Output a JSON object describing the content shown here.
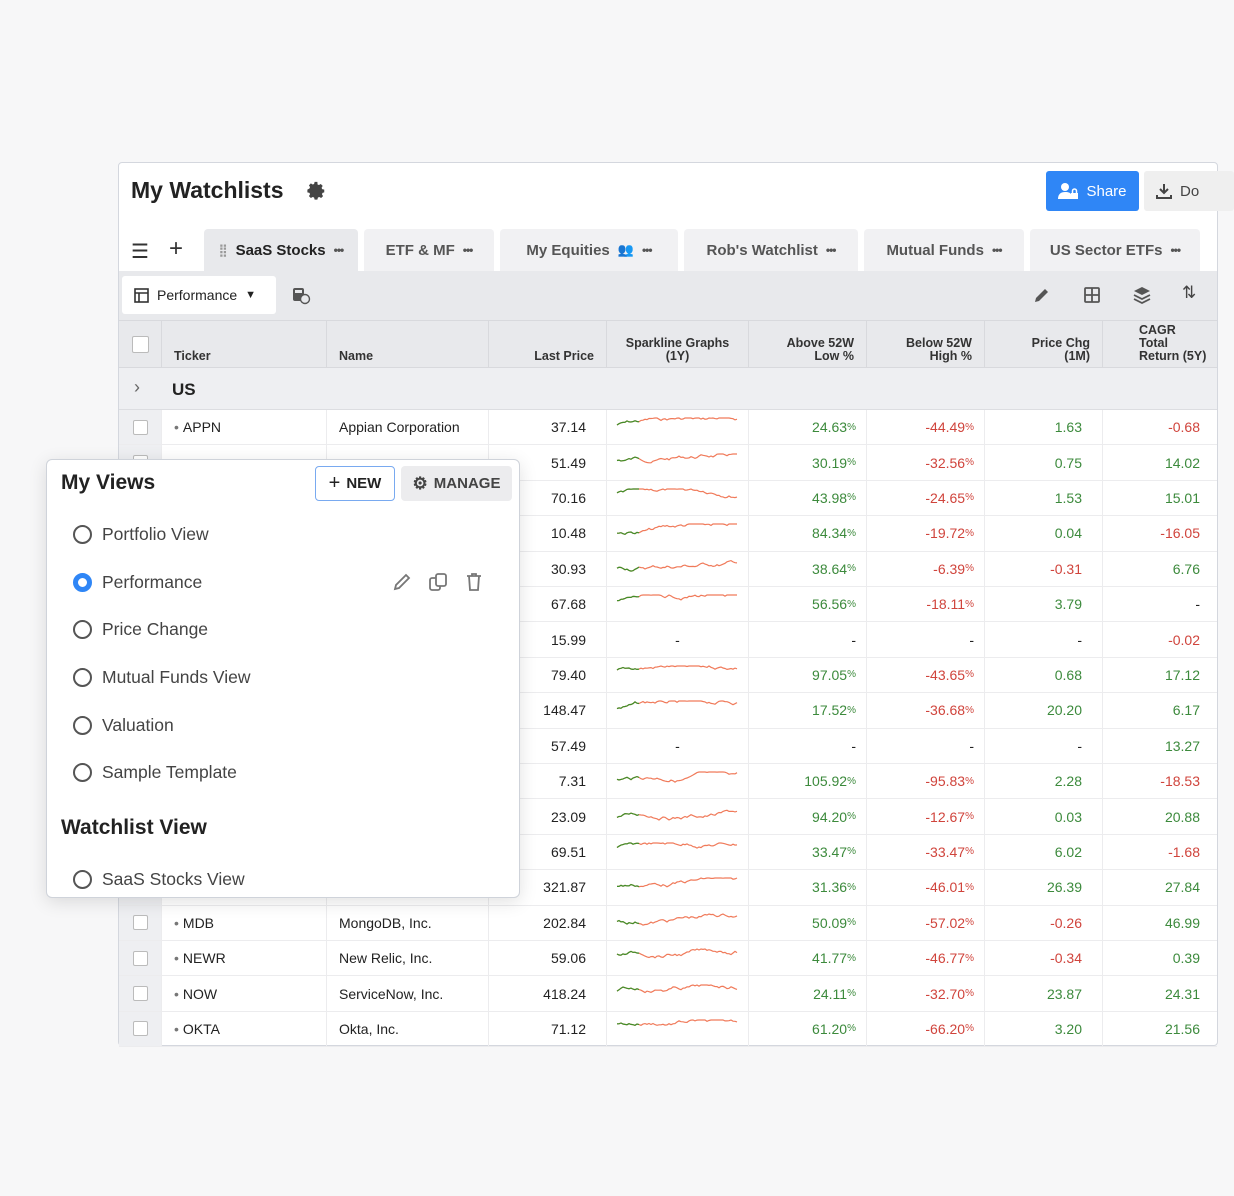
{
  "header": {
    "title": "My Watchlists",
    "share_label": "Share",
    "download_label": "Do"
  },
  "tabs": [
    {
      "label": "SaaS Stocks",
      "active": true
    },
    {
      "label": "ETF & MF"
    },
    {
      "label": "My Equities",
      "shared": true
    },
    {
      "label": "Rob's Watchlist"
    },
    {
      "label": "Mutual Funds"
    },
    {
      "label": "US Sector ETFs"
    }
  ],
  "toolbar": {
    "view_label": "Performance"
  },
  "columns": {
    "ticker": "Ticker",
    "name": "Name",
    "last_price": "Last Price",
    "sparkline": "Sparkline Graphs (1Y)",
    "above_low": "Above 52W Low %",
    "below_high": "Below 52W High %",
    "price_chg": "Price Chg (1M)",
    "cagr": "CAGR Total Return (5Y)"
  },
  "group": "US",
  "rows": [
    {
      "ticker": "APPN",
      "name": "Appian Corporation",
      "price": "37.14",
      "above": "24.63",
      "below": "-44.49",
      "chg": "1.63",
      "cagr": "-0.68"
    },
    {
      "ticker": "",
      "name": "",
      "price": "51.49",
      "above": "30.19",
      "below": "-32.56",
      "chg": "0.75",
      "cagr": "14.02"
    },
    {
      "ticker": "",
      "name": "",
      "price": "70.16",
      "above": "43.98",
      "below": "-24.65",
      "chg": "1.53",
      "cagr": "15.01"
    },
    {
      "ticker": "",
      "name": "",
      "price": "10.48",
      "above": "84.34",
      "below": "-19.72",
      "chg": "0.04",
      "cagr": "-16.05"
    },
    {
      "ticker": "",
      "name": "",
      "price": "30.93",
      "above": "38.64",
      "below": "-6.39",
      "chg": "-0.31",
      "cagr": "6.76"
    },
    {
      "ticker": "",
      "name": "",
      "price": "67.68",
      "above": "56.56",
      "below": "-18.11",
      "chg": "3.79",
      "cagr": "-"
    },
    {
      "ticker": "",
      "name": "",
      "price": "15.99",
      "above": "-",
      "below": "-",
      "chg": "-",
      "cagr": "-0.02",
      "nospark": true
    },
    {
      "ticker": "",
      "name": "",
      "price": "79.40",
      "above": "97.05",
      "below": "-43.65",
      "chg": "0.68",
      "cagr": "17.12"
    },
    {
      "ticker": "",
      "name": "",
      "price": "148.47",
      "above": "17.52",
      "below": "-36.68",
      "chg": "20.20",
      "cagr": "6.17"
    },
    {
      "ticker": "",
      "name": "",
      "price": "57.49",
      "above": "-",
      "below": "-",
      "chg": "-",
      "cagr": "13.27",
      "nospark": true
    },
    {
      "ticker": "",
      "name": "",
      "price": "7.31",
      "above": "105.92",
      "below": "-95.83",
      "chg": "2.28",
      "cagr": "-18.53"
    },
    {
      "ticker": "",
      "name": "",
      "price": "23.09",
      "above": "94.20",
      "below": "-12.67",
      "chg": "0.03",
      "cagr": "20.88"
    },
    {
      "ticker": "",
      "name": "",
      "price": "69.51",
      "above": "33.47",
      "below": "-33.47",
      "chg": "6.02",
      "cagr": "-1.68"
    },
    {
      "ticker": "",
      "name": "",
      "price": "321.87",
      "above": "31.36",
      "below": "-46.01",
      "chg": "26.39",
      "cagr": "27.84"
    },
    {
      "ticker": "MDB",
      "name": "MongoDB, Inc.",
      "price": "202.84",
      "above": "50.09",
      "below": "-57.02",
      "chg": "-0.26",
      "cagr": "46.99"
    },
    {
      "ticker": "NEWR",
      "name": "New Relic, Inc.",
      "price": "59.06",
      "above": "41.77",
      "below": "-46.77",
      "chg": "-0.34",
      "cagr": "0.39"
    },
    {
      "ticker": "NOW",
      "name": "ServiceNow, Inc.",
      "price": "418.24",
      "above": "24.11",
      "below": "-32.70",
      "chg": "23.87",
      "cagr": "24.31"
    },
    {
      "ticker": "OKTA",
      "name": "Okta, Inc.",
      "price": "71.12",
      "above": "61.20",
      "below": "-66.20",
      "chg": "3.20",
      "cagr": "21.56"
    }
  ],
  "popup": {
    "title": "My Views",
    "new_label": "NEW",
    "manage_label": "MANAGE",
    "views": [
      {
        "label": "Portfolio View"
      },
      {
        "label": "Performance",
        "selected": true
      },
      {
        "label": "Price Change"
      },
      {
        "label": "Mutual Funds View"
      },
      {
        "label": "Valuation"
      },
      {
        "label": "Sample Template"
      }
    ],
    "section2": "Watchlist View",
    "watchlist_views": [
      {
        "label": "SaaS Stocks View"
      }
    ]
  },
  "colors": {
    "accent": "#2f86f6",
    "positive": "#3c8a3c",
    "negative": "#d0443c",
    "spark_down": "#f07a5a",
    "spark_up": "#3f8f2a"
  }
}
